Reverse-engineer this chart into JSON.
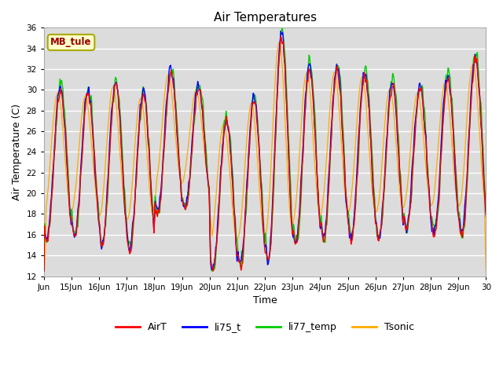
{
  "title": "Air Temperatures",
  "xlabel": "Time",
  "ylabel": "Air Temperature (C)",
  "ylim": [
    12,
    36
  ],
  "yticks": [
    12,
    14,
    16,
    18,
    20,
    22,
    24,
    26,
    28,
    30,
    32,
    34,
    36
  ],
  "xtick_labels": [
    "Jun",
    "15Jun",
    "16Jun",
    "17Jun",
    "18Jun",
    "19Jun",
    "20Jun",
    "21Jun",
    "22Jun",
    "23Jun",
    "24Jun",
    "25Jun",
    "26Jun",
    "27Jun",
    "28Jun",
    "29Jun",
    "30"
  ],
  "series_colors": {
    "AirT": "#ff0000",
    "li75_t": "#0000ff",
    "li77_temp": "#00cc00",
    "Tsonic": "#ffaa00"
  },
  "background_color": "#e8e8e8",
  "plot_bg": "#dcdcdc",
  "box_label": "MB_tule",
  "box_facecolor": "#ffffcc",
  "box_edgecolor": "#aaaa00",
  "box_textcolor": "#990000",
  "legend_colors": [
    "#ff0000",
    "#0000ff",
    "#00cc00",
    "#ffaa00"
  ],
  "legend_labels": [
    "AirT",
    "li75_t",
    "li77_temp",
    "Tsonic"
  ]
}
